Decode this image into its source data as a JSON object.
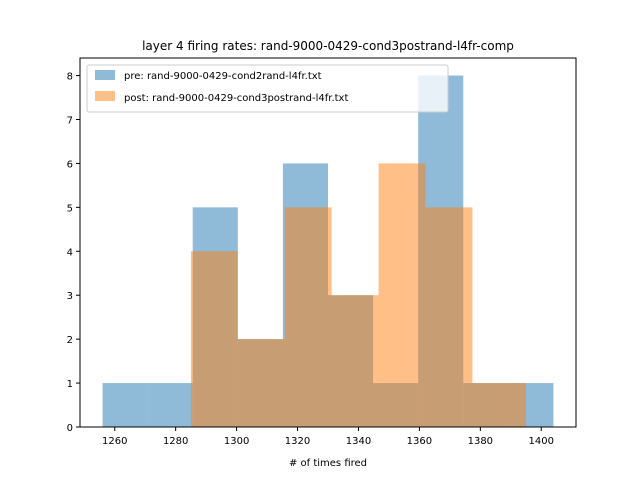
{
  "chart_data": {
    "type": "histogram",
    "title": "layer 4 firing rates: rand-9000-0429-cond3postrand-l4fr-comp",
    "xlabel": "# of times fired",
    "ylabel": "",
    "xlim": [
      1248.6,
      1411.4
    ],
    "ylim": [
      0,
      8.4
    ],
    "xticks": [
      1260,
      1280,
      1300,
      1320,
      1340,
      1360,
      1380,
      1400
    ],
    "yticks": [
      0,
      1,
      2,
      3,
      4,
      5,
      6,
      7,
      8
    ],
    "grid": false,
    "legend_position": "upper-left",
    "series": [
      {
        "name": "pre: rand-9000-0429-cond2rand-l4fr.txt",
        "color": "#1f77b4",
        "alpha": 0.5,
        "bin_edges": [
          1256,
          1270.8,
          1285.6,
          1300.4,
          1315.2,
          1330,
          1344.8,
          1359.6,
          1374.4,
          1389.2,
          1404
        ],
        "counts": [
          1,
          1,
          5,
          2,
          6,
          3,
          1,
          8,
          1,
          1
        ]
      },
      {
        "name": "post: rand-9000-0429-cond3postrand-l4fr.txt",
        "color": "#ff7f0e",
        "alpha": 0.5,
        "bin_edges": [
          1285,
          1300.4,
          1315.8,
          1331.2,
          1346.6,
          1362,
          1377.4,
          1392.8,
          1395
        ],
        "counts": [
          4,
          2,
          5,
          3,
          6,
          5,
          1,
          1
        ]
      }
    ]
  }
}
